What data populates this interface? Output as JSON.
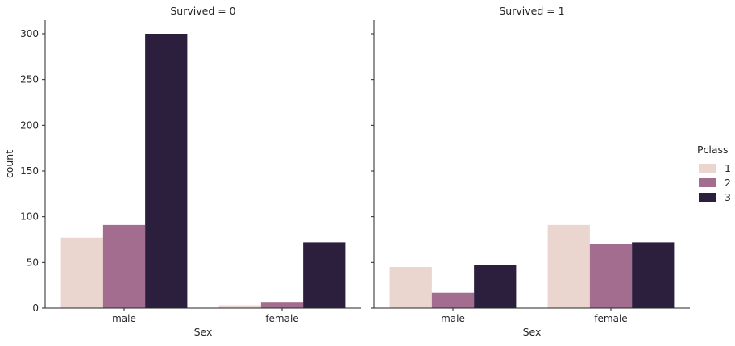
{
  "chart_data": {
    "type": "bar",
    "panels": [
      {
        "title": "Survived = 0",
        "categories": [
          "male",
          "female"
        ],
        "series": [
          {
            "name": "1",
            "values": [
              77,
              3
            ]
          },
          {
            "name": "2",
            "values": [
              91,
              6
            ]
          },
          {
            "name": "3",
            "values": [
              300,
              72
            ]
          }
        ]
      },
      {
        "title": "Survived = 1",
        "categories": [
          "male",
          "female"
        ],
        "series": [
          {
            "name": "1",
            "values": [
              45,
              91
            ]
          },
          {
            "name": "2",
            "values": [
              17,
              70
            ]
          },
          {
            "name": "3",
            "values": [
              47,
              72
            ]
          }
        ]
      }
    ],
    "xlabel": "Sex",
    "ylabel": "count",
    "ylim": [
      0,
      315
    ],
    "yticks": [
      0,
      50,
      100,
      150,
      200,
      250,
      300
    ],
    "grid": false,
    "legend": {
      "title": "Pclass",
      "placement": "right",
      "entries": [
        "1",
        "2",
        "3"
      ]
    },
    "colors": [
      "#ead5cf",
      "#a26d8e",
      "#2c1e3d"
    ]
  }
}
